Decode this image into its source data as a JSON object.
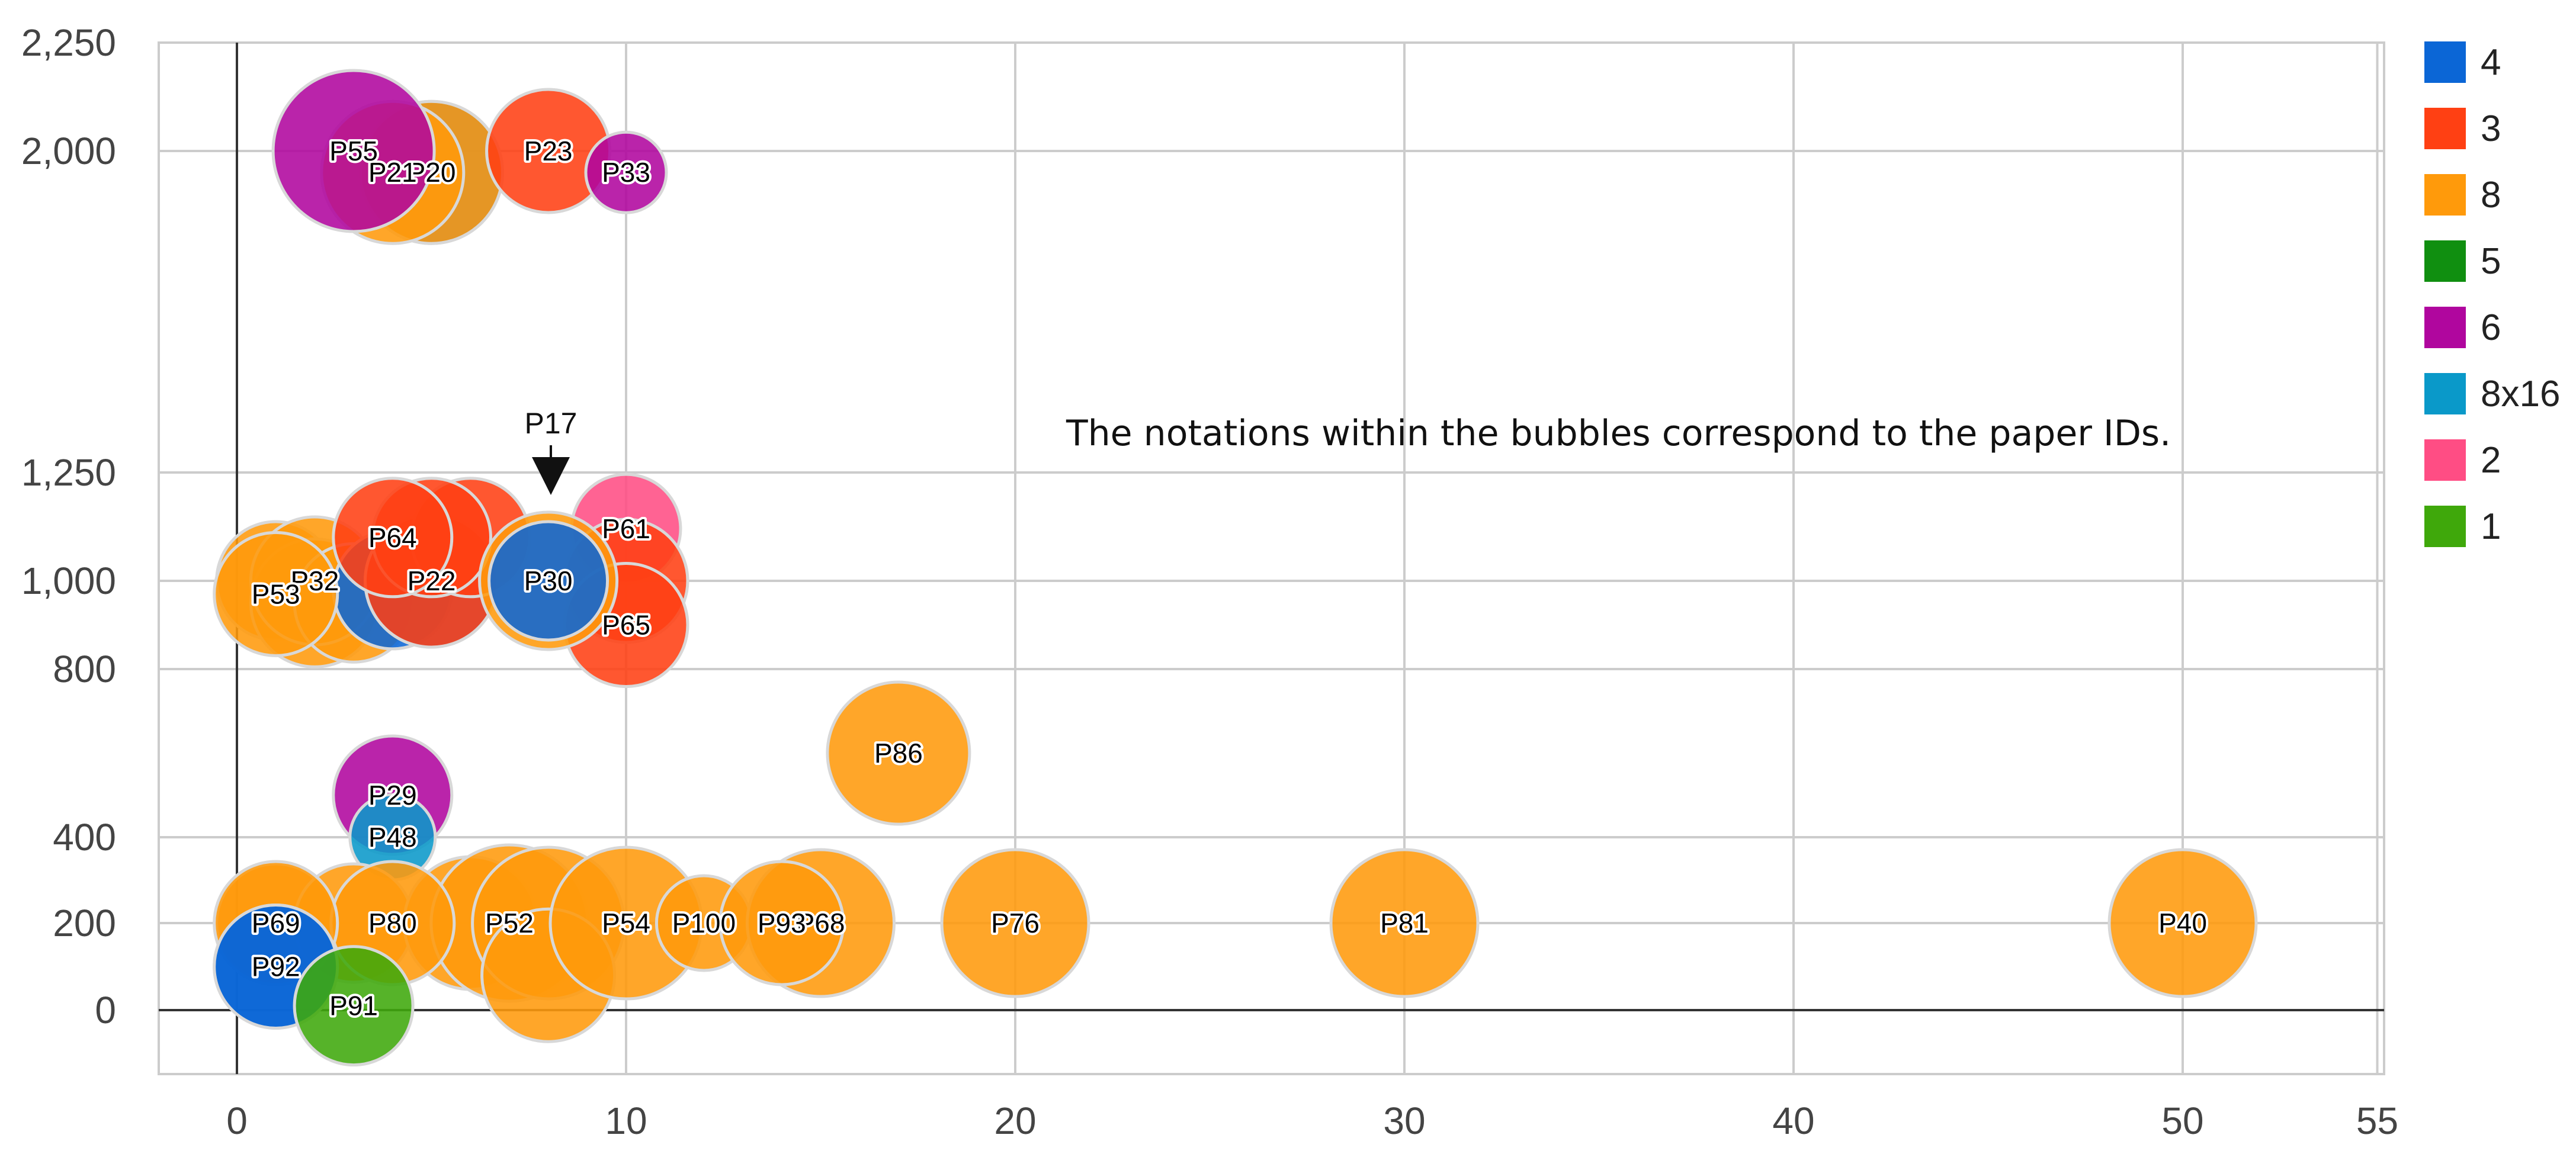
{
  "chart_data": {
    "type": "scatter",
    "title": "",
    "xlabel": "",
    "ylabel": "",
    "xlim": [
      -2,
      55
    ],
    "ylim": [
      -150,
      2250
    ],
    "y_scale": "custom-segmented",
    "grid": true,
    "legend_position": "right",
    "x_ticks": [
      0,
      10,
      20,
      30,
      40,
      55
    ],
    "x_tick_labels": [
      "0",
      "10",
      "20",
      "30",
      "40",
      "55"
    ],
    "x_gridlines": [
      10,
      20,
      30,
      40,
      50,
      55
    ],
    "extra_x_labels": [
      {
        "x": 50,
        "text": "50"
      }
    ],
    "y_ticks": [
      0,
      200,
      400,
      800,
      1000,
      1250,
      2000,
      2250
    ],
    "y_tick_labels": [
      "0",
      "200",
      "400",
      "800",
      "1,000",
      "1,250",
      "2,000",
      "2,250"
    ],
    "annotation": "The notations within the bubbles correspond to the paper IDs.",
    "callout": {
      "text": "P17",
      "x": 8,
      "y": 1000
    },
    "series": [
      {
        "name": "4",
        "color": "#0b66d6"
      },
      {
        "name": "3",
        "color": "#ff4013"
      },
      {
        "name": "8",
        "color": "#ff9a0b"
      },
      {
        "name": "5",
        "color": "#108f10"
      },
      {
        "name": "6",
        "color": "#b0069e"
      },
      {
        "name": "8x16",
        "color": "#0a99c9"
      },
      {
        "name": "2",
        "color": "#ff4d84"
      },
      {
        "name": "1",
        "color": "#3fa80b"
      }
    ],
    "points": [
      {
        "label": "",
        "x": 5,
        "y": 1950,
        "size": 3,
        "series": "4"
      },
      {
        "label": "P20",
        "x": 5,
        "y": 1950,
        "size": 3,
        "series": "8"
      },
      {
        "label": "P21",
        "x": 4,
        "y": 1950,
        "size": 3,
        "series": "8"
      },
      {
        "label": "P23",
        "x": 8,
        "y": 2000,
        "size": 2.6,
        "series": "3"
      },
      {
        "label": "P55",
        "x": 3,
        "y": 2000,
        "size": 3.4,
        "series": "6"
      },
      {
        "label": "P33",
        "x": 10,
        "y": 1950,
        "size": 1.7,
        "series": "6"
      },
      {
        "label": "",
        "x": 1,
        "y": 1000,
        "size": 2.5,
        "series": "8"
      },
      {
        "label": "",
        "x": 2,
        "y": 950,
        "size": 2.7,
        "series": "8"
      },
      {
        "label": "P32",
        "x": 2,
        "y": 1000,
        "size": 2.7,
        "series": "8"
      },
      {
        "label": "",
        "x": 3,
        "y": 950,
        "size": 2.5,
        "series": "8"
      },
      {
        "label": "",
        "x": 4,
        "y": 980,
        "size": 2.5,
        "series": "4"
      },
      {
        "label": "",
        "x": 5,
        "y": 1000,
        "size": 2.8,
        "series": "4"
      },
      {
        "label": "P22",
        "x": 5,
        "y": 1000,
        "size": 2.8,
        "series": "3"
      },
      {
        "label": "",
        "x": 6,
        "y": 1100,
        "size": 2.5,
        "series": "3"
      },
      {
        "label": "",
        "x": 5,
        "y": 1100,
        "size": 2.5,
        "series": "3"
      },
      {
        "label": "P64",
        "x": 4,
        "y": 1100,
        "size": 2.5,
        "series": "3"
      },
      {
        "label": "P53",
        "x": 1,
        "y": 970,
        "size": 2.6,
        "series": "8"
      },
      {
        "label": "P61",
        "x": 10,
        "y": 1120,
        "size": 2.3,
        "series": "2"
      },
      {
        "label": "",
        "x": 10,
        "y": 1000,
        "size": 2.6,
        "series": "3"
      },
      {
        "label": "P65",
        "x": 10,
        "y": 900,
        "size": 2.6,
        "series": "3"
      },
      {
        "label": "P30",
        "x": 8,
        "y": 1000,
        "size": 2.9,
        "series": "8"
      },
      {
        "label": "",
        "x": 8,
        "y": 1000,
        "size": 2.5,
        "series": "4"
      },
      {
        "label": "P86",
        "x": 17,
        "y": 600,
        "size": 3,
        "series": "8"
      },
      {
        "label": "P29",
        "x": 4,
        "y": 500,
        "size": 2.5,
        "series": "6"
      },
      {
        "label": "P48",
        "x": 4,
        "y": 400,
        "size": 1.8,
        "series": "8x16"
      },
      {
        "label": "",
        "x": 1,
        "y": 200,
        "size": 2.5,
        "series": "8"
      },
      {
        "label": "",
        "x": 3,
        "y": 200,
        "size": 2.5,
        "series": "8"
      },
      {
        "label": "",
        "x": 6,
        "y": 200,
        "size": 2.8,
        "series": "8"
      },
      {
        "label": "P52",
        "x": 7,
        "y": 200,
        "size": 3.3,
        "series": "8"
      },
      {
        "label": "",
        "x": 8,
        "y": 200,
        "size": 3.2,
        "series": "8"
      },
      {
        "label": "",
        "x": 8,
        "y": 80,
        "size": 2.8,
        "series": "8"
      },
      {
        "label": "P80",
        "x": 4,
        "y": 200,
        "size": 2.6,
        "series": "8"
      },
      {
        "label": "P69",
        "x": 1,
        "y": 200,
        "size": 2.6,
        "series": "8"
      },
      {
        "label": "P54",
        "x": 10,
        "y": 200,
        "size": 3.2,
        "series": "8"
      },
      {
        "label": "P100",
        "x": 12,
        "y": 200,
        "size": 2,
        "series": "8"
      },
      {
        "label": "P68",
        "x": 15,
        "y": 200,
        "size": 3.1,
        "series": "8"
      },
      {
        "label": "P93",
        "x": 14,
        "y": 200,
        "size": 2.6,
        "series": "8"
      },
      {
        "label": "P76",
        "x": 20,
        "y": 200,
        "size": 3.1,
        "series": "8"
      },
      {
        "label": "P81",
        "x": 30,
        "y": 200,
        "size": 3.1,
        "series": "8"
      },
      {
        "label": "P40",
        "x": 50,
        "y": 200,
        "size": 3.1,
        "series": "8"
      },
      {
        "label": "",
        "x": 1,
        "y": 100,
        "size": 2.6,
        "series": "4"
      },
      {
        "label": "P92",
        "x": 1,
        "y": 100,
        "size": 2.6,
        "series": "4"
      },
      {
        "label": "P91",
        "x": 3,
        "y": 10,
        "size": 2.5,
        "series": "1"
      }
    ]
  }
}
